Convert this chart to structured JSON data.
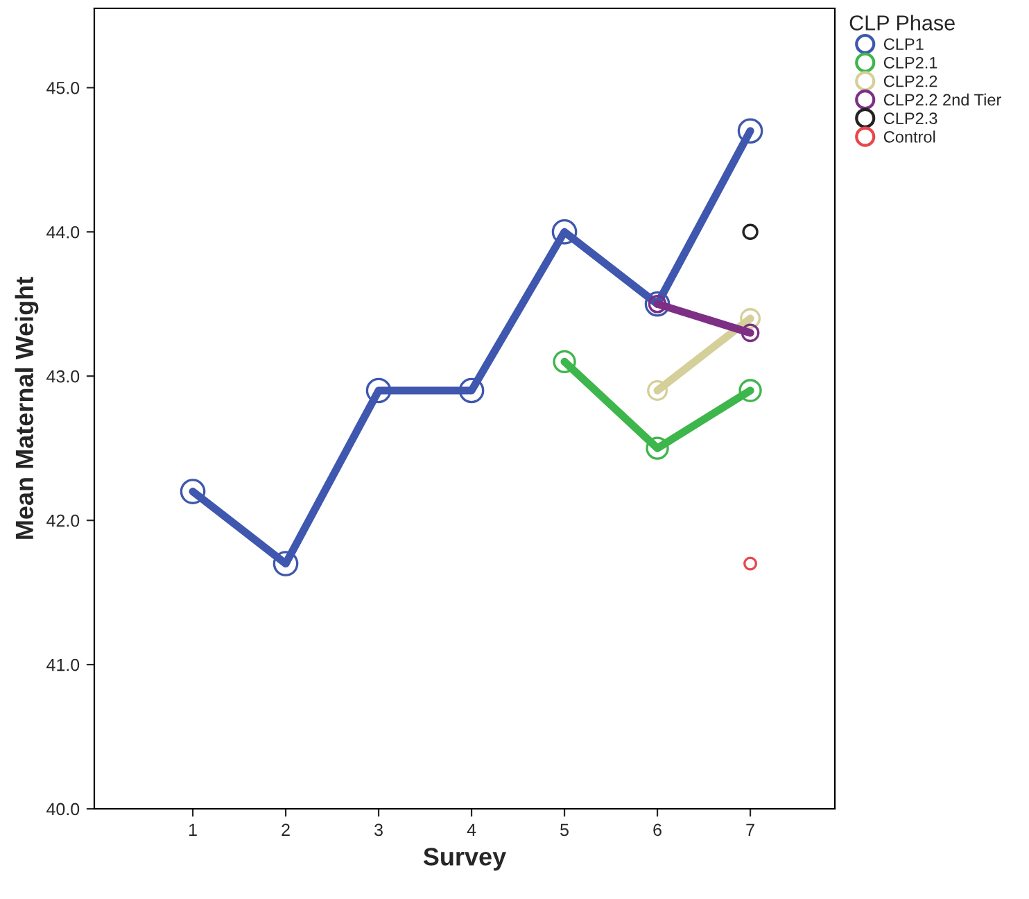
{
  "chart_data": {
    "type": "line",
    "xlabel": "Survey",
    "ylabel": "Mean Maternal Weight",
    "legend_title": "CLP Phase",
    "categories": [
      "1",
      "2",
      "3",
      "4",
      "5",
      "6",
      "7"
    ],
    "series": [
      {
        "name": "CLP1",
        "color": "#3f57ae",
        "values": [
          42.2,
          41.7,
          42.9,
          42.9,
          44.0,
          43.5,
          44.7
        ]
      },
      {
        "name": "CLP2.1",
        "color": "#3db64b",
        "values": [
          null,
          null,
          null,
          null,
          43.1,
          42.5,
          42.9
        ]
      },
      {
        "name": "CLP2.2",
        "color": "#d5cf9a",
        "values": [
          null,
          null,
          null,
          null,
          null,
          42.9,
          43.4
        ]
      },
      {
        "name": "CLP2.2 2nd Tier",
        "color": "#7d2f85",
        "values": [
          null,
          null,
          null,
          null,
          null,
          43.5,
          43.3
        ]
      },
      {
        "name": "CLP2.3",
        "color": "#222222",
        "values": [
          null,
          null,
          null,
          null,
          null,
          null,
          44.0
        ]
      },
      {
        "name": "Control",
        "color": "#e8474c",
        "values": [
          null,
          null,
          null,
          null,
          null,
          null,
          41.7
        ]
      }
    ],
    "ylim": [
      40.0,
      45.55
    ],
    "yticks": [
      {
        "value": 40,
        "label": "40.0"
      },
      {
        "value": 41,
        "label": "41.0"
      },
      {
        "value": 42,
        "label": "42.0"
      },
      {
        "value": 43,
        "label": "43.0"
      },
      {
        "value": 44,
        "label": "44.0"
      },
      {
        "value": 45,
        "label": "45.0"
      }
    ],
    "grid": false,
    "legend": "right",
    "marker": "circle",
    "line_style": "solid"
  }
}
